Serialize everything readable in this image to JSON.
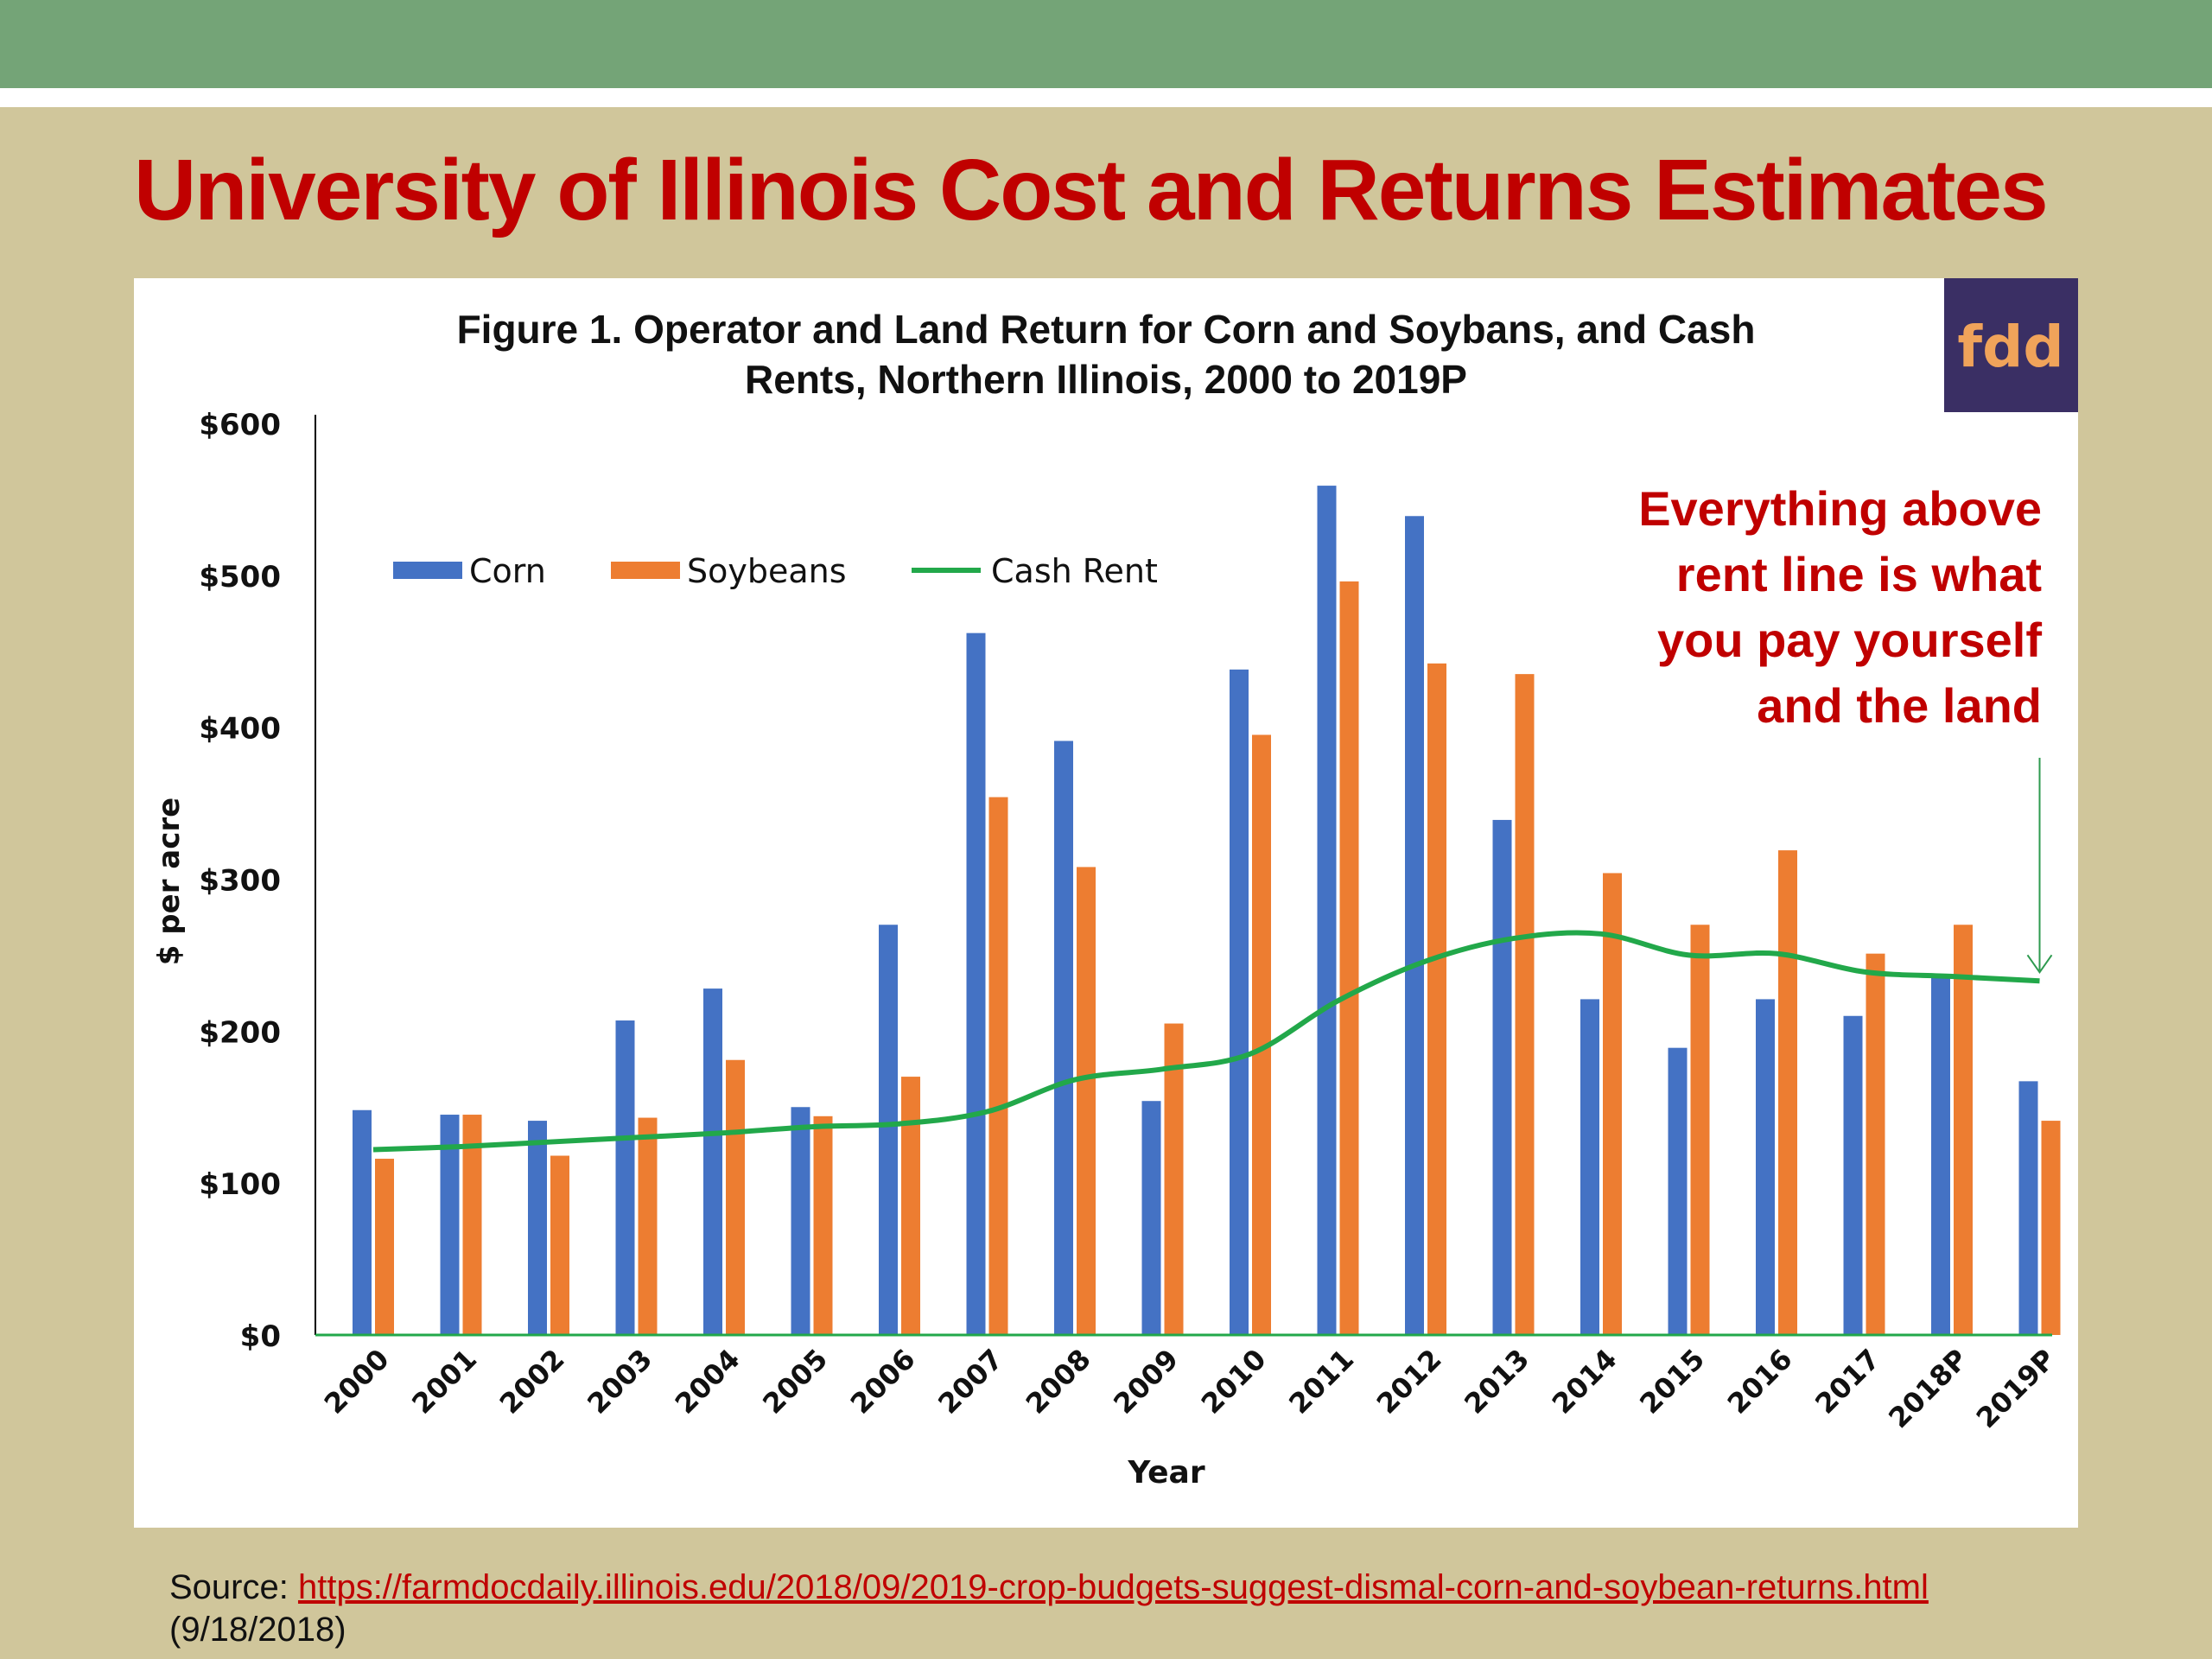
{
  "slide": {
    "title": "University of Illinois Cost and Returns Estimates",
    "source_label": "Source: ",
    "source_url": "https://farmdocdaily.illinois.edu/2018/09/2019-crop-budgets-suggest-dismal-corn-and-soybean-returns.html",
    "source_date": "(9/18/2018)"
  },
  "logo": {
    "text": "fdd"
  },
  "colors": {
    "corn": "#4472c4",
    "soybeans": "#ed7d31",
    "cash_rent": "#22a84a",
    "annotation": "#c00000",
    "logo_bg": "#3a2f64",
    "logo_text": "#f0a35a"
  },
  "annotation": {
    "lines": [
      "Everything above",
      "rent line is what",
      "you pay yourself",
      "and the land"
    ]
  },
  "chart_data": {
    "type": "bar",
    "title_lines": [
      "Figure 1. Operator and Land Return for Corn and Soybans, and Cash",
      "Rents, Northern Illinois,  2000 to 2019P"
    ],
    "xlabel": "Year",
    "ylabel": "$ per acre",
    "ylim": [
      0,
      600
    ],
    "y_ticks": [
      0,
      100,
      200,
      300,
      400,
      500,
      600
    ],
    "y_tick_labels": [
      "$0",
      "$100",
      "$200",
      "$300",
      "$400",
      "$500",
      "$600"
    ],
    "categories": [
      "2000",
      "2001",
      "2002",
      "2003",
      "2004",
      "2005",
      "2006",
      "2007",
      "2008",
      "2009",
      "2010",
      "2011",
      "2012",
      "2013",
      "2014",
      "2015",
      "2016",
      "2017",
      "2018P",
      "2019P"
    ],
    "series": [
      {
        "name": "Corn",
        "type": "bar",
        "values": [
          148,
          145,
          141,
          207,
          228,
          150,
          270,
          462,
          391,
          154,
          438,
          559,
          539,
          339,
          221,
          189,
          221,
          210,
          237,
          167
        ]
      },
      {
        "name": "Soybeans",
        "type": "bar",
        "values": [
          116,
          145,
          118,
          143,
          181,
          144,
          170,
          354,
          308,
          205,
          395,
          496,
          442,
          435,
          304,
          270,
          319,
          251,
          270,
          141
        ]
      },
      {
        "name": "Cash Rent",
        "type": "line",
        "values": [
          122,
          124,
          127,
          130,
          133,
          137,
          139,
          147,
          168,
          175,
          185,
          220,
          246,
          261,
          264,
          250,
          251,
          239,
          236,
          233
        ]
      }
    ],
    "legend": {
      "position": "top-left"
    }
  }
}
